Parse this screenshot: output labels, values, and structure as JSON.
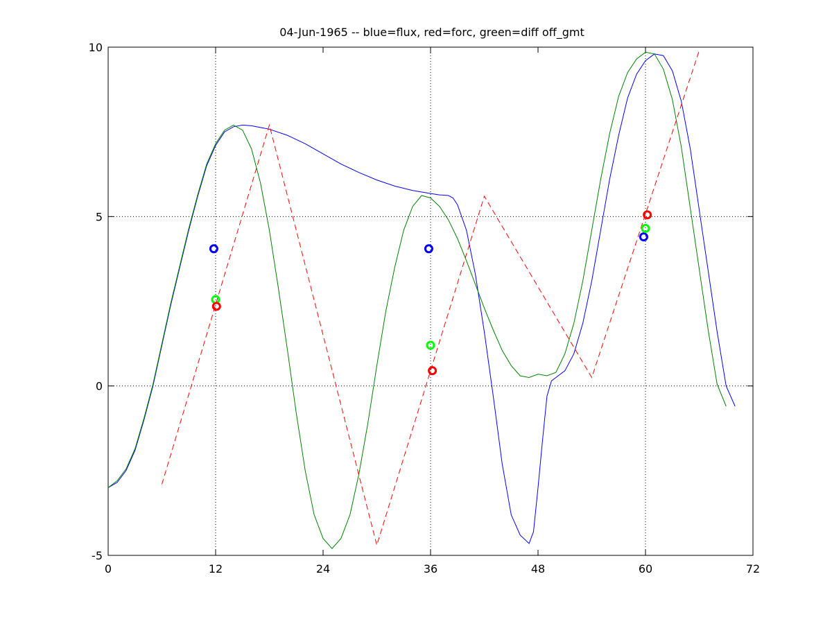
{
  "chart_data": {
    "type": "line",
    "title": "04-Jun-1965 -- blue=flux, red=forc, green=diff off_gmt",
    "xlabel": "",
    "ylabel": "",
    "xlim": [
      0,
      72
    ],
    "ylim": [
      -5,
      10
    ],
    "x_ticks": [
      0,
      12,
      24,
      36,
      48,
      60,
      72
    ],
    "y_ticks": [
      -5,
      0,
      5,
      10
    ],
    "grid": "dotted at x = 12, 36, 60 and y = 0, 5",
    "grid_x": [
      12,
      36,
      60
    ],
    "grid_y": [
      0,
      5
    ],
    "legend": "none",
    "series": [
      {
        "color": "#0000ff",
        "style": "solid",
        "points": [
          [
            0,
            -3
          ],
          [
            1,
            -2.85
          ],
          [
            2,
            -2.5
          ],
          [
            3,
            -1.9
          ],
          [
            4,
            -1.0
          ],
          [
            5,
            0.0
          ],
          [
            6,
            1.2
          ],
          [
            7,
            2.4
          ],
          [
            8,
            3.5
          ],
          [
            9,
            4.6
          ],
          [
            10,
            5.6
          ],
          [
            11,
            6.5
          ],
          [
            12,
            7.1
          ],
          [
            13,
            7.5
          ],
          [
            14,
            7.65
          ],
          [
            15,
            7.7
          ],
          [
            16,
            7.68
          ],
          [
            18,
            7.58
          ],
          [
            20,
            7.4
          ],
          [
            22,
            7.15
          ],
          [
            24,
            6.85
          ],
          [
            26,
            6.55
          ],
          [
            28,
            6.3
          ],
          [
            30,
            6.08
          ],
          [
            32,
            5.9
          ],
          [
            34,
            5.77
          ],
          [
            36,
            5.68
          ],
          [
            37,
            5.64
          ],
          [
            38,
            5.62
          ],
          [
            38.5,
            5.55
          ],
          [
            39,
            5.35
          ],
          [
            40,
            4.6
          ],
          [
            41,
            3.3
          ],
          [
            42,
            1.6
          ],
          [
            43,
            -0.3
          ],
          [
            44,
            -2.3
          ],
          [
            45,
            -3.8
          ],
          [
            46,
            -4.4
          ],
          [
            47,
            -4.65
          ],
          [
            47.5,
            -4.3
          ],
          [
            48,
            -3.0
          ],
          [
            48.5,
            -1.6
          ],
          [
            49,
            -0.3
          ],
          [
            49.5,
            0.15
          ],
          [
            50,
            0.25
          ],
          [
            51,
            0.45
          ],
          [
            52,
            0.95
          ],
          [
            53,
            1.85
          ],
          [
            54,
            3.1
          ],
          [
            55,
            4.6
          ],
          [
            56,
            6.1
          ],
          [
            57,
            7.4
          ],
          [
            58,
            8.5
          ],
          [
            59,
            9.2
          ],
          [
            60,
            9.6
          ],
          [
            61,
            9.8
          ],
          [
            62,
            9.75
          ],
          [
            63,
            9.3
          ],
          [
            64,
            8.4
          ],
          [
            65,
            7.0
          ],
          [
            66,
            5.2
          ],
          [
            67,
            3.4
          ],
          [
            68,
            1.6
          ],
          [
            69,
            0.0
          ],
          [
            70,
            -0.6
          ]
        ]
      },
      {
        "color": "#008000",
        "style": "solid",
        "points": [
          [
            0,
            -3
          ],
          [
            1,
            -2.8
          ],
          [
            2,
            -2.45
          ],
          [
            3,
            -1.85
          ],
          [
            4,
            -0.95
          ],
          [
            5,
            0.05
          ],
          [
            6,
            1.25
          ],
          [
            7,
            2.45
          ],
          [
            8,
            3.55
          ],
          [
            9,
            4.65
          ],
          [
            10,
            5.65
          ],
          [
            11,
            6.55
          ],
          [
            12,
            7.15
          ],
          [
            13,
            7.55
          ],
          [
            14,
            7.7
          ],
          [
            15,
            7.55
          ],
          [
            16,
            7.0
          ],
          [
            17,
            6.0
          ],
          [
            18,
            4.6
          ],
          [
            19,
            2.9
          ],
          [
            20,
            1.1
          ],
          [
            21,
            -0.8
          ],
          [
            22,
            -2.5
          ],
          [
            23,
            -3.8
          ],
          [
            24,
            -4.5
          ],
          [
            25,
            -4.8
          ],
          [
            26,
            -4.5
          ],
          [
            27,
            -3.8
          ],
          [
            28,
            -2.6
          ],
          [
            29,
            -1.1
          ],
          [
            30,
            0.6
          ],
          [
            31,
            2.2
          ],
          [
            32,
            3.5
          ],
          [
            33,
            4.6
          ],
          [
            34,
            5.3
          ],
          [
            35,
            5.62
          ],
          [
            36,
            5.55
          ],
          [
            37,
            5.3
          ],
          [
            38,
            4.9
          ],
          [
            39,
            4.35
          ],
          [
            40,
            3.7
          ],
          [
            41,
            3.0
          ],
          [
            42,
            2.3
          ],
          [
            43,
            1.65
          ],
          [
            44,
            1.05
          ],
          [
            45,
            0.6
          ],
          [
            46,
            0.3
          ],
          [
            47,
            0.25
          ],
          [
            48,
            0.35
          ],
          [
            49,
            0.3
          ],
          [
            50,
            0.4
          ],
          [
            51,
            0.95
          ],
          [
            52,
            1.85
          ],
          [
            53,
            3.1
          ],
          [
            54,
            4.6
          ],
          [
            55,
            6.1
          ],
          [
            56,
            7.45
          ],
          [
            57,
            8.55
          ],
          [
            58,
            9.25
          ],
          [
            59,
            9.65
          ],
          [
            60,
            9.85
          ],
          [
            61,
            9.8
          ],
          [
            62,
            9.35
          ],
          [
            63,
            8.45
          ],
          [
            64,
            7.05
          ],
          [
            65,
            5.25
          ],
          [
            66,
            3.45
          ],
          [
            67,
            1.65
          ],
          [
            68,
            0.05
          ],
          [
            69,
            -0.6
          ]
        ]
      },
      {
        "color": "#ff0000",
        "style": "dashed",
        "points": [
          [
            6,
            -2.9
          ],
          [
            18,
            7.7
          ],
          [
            30,
            -4.7
          ],
          [
            42,
            5.6
          ],
          [
            54,
            0.25
          ],
          [
            66,
            9.9
          ]
        ]
      }
    ],
    "markers": [
      {
        "x": 11.8,
        "y": 4.05,
        "color": "#0000ff"
      },
      {
        "x": 12.0,
        "y": 2.55,
        "color": "#00ff00"
      },
      {
        "x": 12.1,
        "y": 2.35,
        "color": "#ff0000"
      },
      {
        "x": 35.8,
        "y": 4.05,
        "color": "#0000ff"
      },
      {
        "x": 36.0,
        "y": 1.2,
        "color": "#00ff00"
      },
      {
        "x": 36.2,
        "y": 0.45,
        "color": "#ff0000"
      },
      {
        "x": 59.8,
        "y": 4.4,
        "color": "#0000ff"
      },
      {
        "x": 60.0,
        "y": 4.65,
        "color": "#00ff00"
      },
      {
        "x": 60.2,
        "y": 5.05,
        "color": "#ff0000"
      }
    ]
  }
}
